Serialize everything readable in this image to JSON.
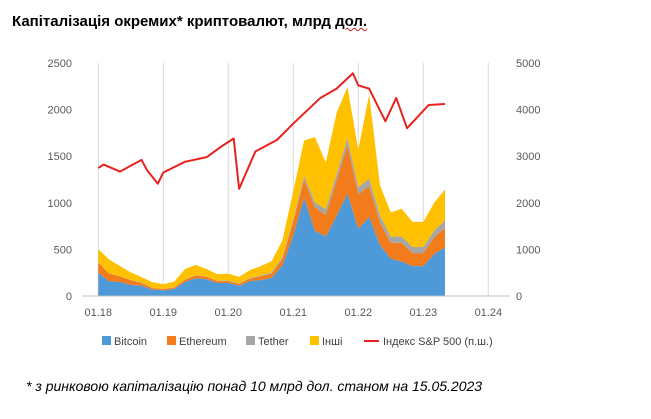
{
  "title_main": "Капіталізація окремих* криптовалют, млрд ",
  "title_wavy": "дол.",
  "footnote": "* з ринковою капіталізацію понад 10 млрд дол. станом на 15.05.2023",
  "chart_data": {
    "type": "area",
    "title": "Капіталізація окремих* криптовалют, млрд дол.",
    "x_tick_labels": [
      "01.18",
      "01.19",
      "01.20",
      "01.21",
      "01.22",
      "01.23",
      "01.24"
    ],
    "ylim": [
      0,
      2500
    ],
    "y2lim": [
      0,
      5000
    ],
    "y_ticks": [
      0,
      500,
      1000,
      1500,
      2000,
      2500
    ],
    "y2_ticks": [
      0,
      1000,
      2000,
      3000,
      4000,
      5000
    ],
    "grid": "vertical gridlines at year ticks",
    "legend_position": "bottom",
    "x": [
      "2018-01",
      "2018-03",
      "2018-05",
      "2018-07",
      "2018-09",
      "2018-11",
      "2019-01",
      "2019-03",
      "2019-05",
      "2019-07",
      "2019-09",
      "2019-11",
      "2020-01",
      "2020-03",
      "2020-05",
      "2020-07",
      "2020-09",
      "2020-11",
      "2021-01",
      "2021-03",
      "2021-05",
      "2021-07",
      "2021-09",
      "2021-11",
      "2022-01",
      "2022-03",
      "2022-05",
      "2022-07",
      "2022-09",
      "2022-11",
      "2023-01",
      "2023-03",
      "2023-05"
    ],
    "stack_order": [
      "Bitcoin",
      "Ethereum",
      "Tether",
      "Інші"
    ],
    "series": [
      {
        "name": "Bitcoin",
        "color": "#4e9ad8",
        "values": [
          250,
          160,
          150,
          120,
          110,
          70,
          60,
          75,
          150,
          190,
          180,
          140,
          140,
          110,
          160,
          170,
          195,
          330,
          650,
          1050,
          700,
          640,
          860,
          1100,
          720,
          850,
          550,
          400,
          370,
          320,
          320,
          450,
          520
        ]
      },
      {
        "name": "Ethereum",
        "color": "#f27b1b",
        "values": [
          110,
          80,
          60,
          50,
          30,
          15,
          15,
          15,
          25,
          30,
          25,
          20,
          20,
          20,
          25,
          40,
          45,
          70,
          150,
          200,
          250,
          230,
          380,
          520,
          370,
          330,
          240,
          170,
          200,
          140,
          140,
          180,
          210
        ]
      },
      {
        "name": "Tether",
        "color": "#a6a6a6",
        "values": [
          2,
          2,
          2,
          3,
          3,
          2,
          2,
          3,
          3,
          4,
          4,
          4,
          5,
          5,
          8,
          10,
          14,
          18,
          25,
          40,
          55,
          62,
          68,
          72,
          78,
          80,
          78,
          66,
          68,
          66,
          66,
          70,
          83
        ]
      },
      {
        "name": "Інші",
        "color": "#ffc000",
        "values": [
          140,
          150,
          110,
          80,
          60,
          60,
          50,
          60,
          110,
          110,
          80,
          70,
          75,
          70,
          85,
          100,
          120,
          180,
          300,
          380,
          700,
          500,
          660,
          550,
          400,
          900,
          320,
          260,
          300,
          270,
          270,
          300,
          330
        ]
      }
    ],
    "line_series": {
      "name": "Індекс S&P 500 (п.ш.)",
      "color": "#e8231f",
      "axis": "right",
      "x": [
        "2018-01",
        "2018-02",
        "2018-05",
        "2018-09",
        "2018-10",
        "2018-12",
        "2019-01",
        "2019-05",
        "2019-09",
        "2019-12",
        "2020-02",
        "2020-03",
        "2020-06",
        "2020-10",
        "2021-01",
        "2021-06",
        "2021-09",
        "2021-12",
        "2022-01",
        "2022-03",
        "2022-06",
        "2022-08",
        "2022-10",
        "2022-12",
        "2023-02",
        "2023-05"
      ],
      "values": [
        2750,
        2820,
        2670,
        2920,
        2700,
        2410,
        2650,
        2880,
        2980,
        3230,
        3380,
        2300,
        3100,
        3350,
        3700,
        4250,
        4450,
        4780,
        4520,
        4450,
        3750,
        4250,
        3600,
        3850,
        4100,
        4120
      ]
    }
  },
  "legend": {
    "bitcoin": "Bitcoin",
    "ethereum": "Ethereum",
    "tether": "Tether",
    "other": "Інші",
    "sp500": "Індекс S&P 500 (п.ш.)"
  }
}
